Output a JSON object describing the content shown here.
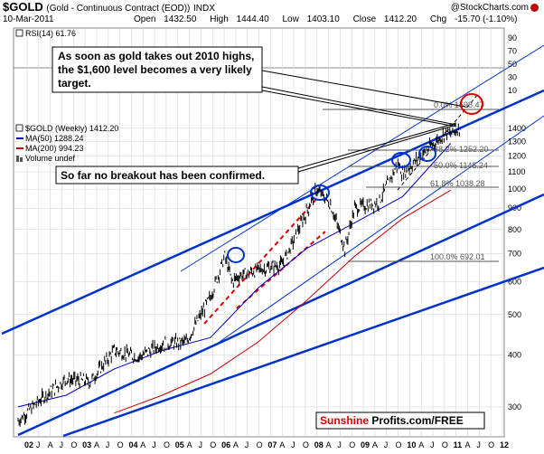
{
  "header": {
    "symbol": "$GOLD",
    "name": "(Gold - Continuous Contract (EOD))",
    "exchange": "INDX",
    "credit": "@StockCharts.com",
    "date": "10-Mar-2011",
    "open_label": "Open",
    "open": "1432.50",
    "high_label": "High",
    "high": "1444.40",
    "low_label": "Low",
    "low": "1403.10",
    "close_label": "Close",
    "close": "1412.20",
    "chg_label": "Chg",
    "chg": "-15.70 (-1.10%)"
  },
  "rsi": {
    "label": "RSI(14) 61.76",
    "ticks": [
      "90",
      "70",
      "50",
      "30",
      "10"
    ]
  },
  "legend": {
    "price": "$GOLD (Weekly) 1412.20",
    "ma50": "MA(50) 1288.24",
    "ma200": "MA(200) 994.23",
    "volume": "Volume undef"
  },
  "annotations": {
    "note1_line1": "As soon as gold takes out 2010 highs,",
    "note1_line2": "the $1,600 level becomes a very likely",
    "note1_line3": "target.",
    "note2": "So far no breakout has been confirmed.",
    "watermark_red": "Sunshine",
    "watermark_black": " Profits.com/FREE"
  },
  "fib_labels": [
    "0.0% 1598.47",
    "38.2% 1252.20",
    "50.0% 1145.24",
    "61.8% 1038.28",
    "100.0% 692.01"
  ],
  "colors": {
    "price_bars": "#000000",
    "ma50": "#0000cc",
    "ma200": "#cc0000",
    "channel": "#0033cc",
    "fib": "#555555",
    "target_circle": "#dd0000",
    "highlight_circle": "#0033cc",
    "red_dashed": "#dd0000"
  },
  "chart_data": {
    "type": "line",
    "scale": "log",
    "x_ticks": [
      "02",
      "J",
      "A",
      "J",
      "O",
      "03",
      "A",
      "J",
      "O",
      "04",
      "A",
      "J",
      "O",
      "05",
      "A",
      "J",
      "O",
      "06",
      "A",
      "J",
      "O",
      "07",
      "A",
      "J",
      "O",
      "08",
      "A",
      "J",
      "O",
      "09",
      "A",
      "J",
      "O",
      "10",
      "A",
      "J",
      "O",
      "11",
      "A",
      "J",
      "O",
      "12"
    ],
    "y_ticks": [
      300,
      400,
      500,
      600,
      700,
      800,
      900,
      1000,
      1100,
      1200,
      1300,
      1400
    ],
    "ylim": [
      270,
      1700
    ],
    "price_weekly": {
      "x": [
        "2002",
        "2002.5",
        "2003",
        "2003.5",
        "2004",
        "2004.5",
        "2005",
        "2005.5",
        "2006",
        "2006.3",
        "2006.45",
        "2006.6",
        "2007",
        "2007.5",
        "2008",
        "2008.2",
        "2008.5",
        "2008.8",
        "2009",
        "2009.5",
        "2009.9",
        "2010",
        "2010.5",
        "2010.9",
        "2011",
        "2011.2"
      ],
      "y": [
        278,
        315,
        350,
        345,
        410,
        395,
        425,
        430,
        550,
        690,
        600,
        620,
        640,
        660,
        880,
        1000,
        920,
        720,
        900,
        930,
        1150,
        1090,
        1240,
        1370,
        1350,
        1412
      ]
    },
    "ma50": {
      "x": [
        "2002",
        "2003",
        "2004",
        "2005",
        "2006",
        "2007",
        "2008",
        "2009",
        "2010",
        "2011"
      ],
      "y": [
        300,
        320,
        370,
        410,
        440,
        580,
        720,
        830,
        960,
        1288
      ]
    },
    "ma200": {
      "x": [
        "2004",
        "2005",
        "2006",
        "2007",
        "2008",
        "2009",
        "2010",
        "2011"
      ],
      "y": [
        290,
        320,
        360,
        430,
        540,
        690,
        850,
        994
      ]
    },
    "fibonacci": [
      {
        "level": "0.0%",
        "value": 1598.47
      },
      {
        "level": "38.2%",
        "value": 1252.2
      },
      {
        "level": "50.0%",
        "value": 1145.24
      },
      {
        "level": "61.8%",
        "value": 1038.28
      },
      {
        "level": "100.0%",
        "value": 692.01
      }
    ]
  }
}
